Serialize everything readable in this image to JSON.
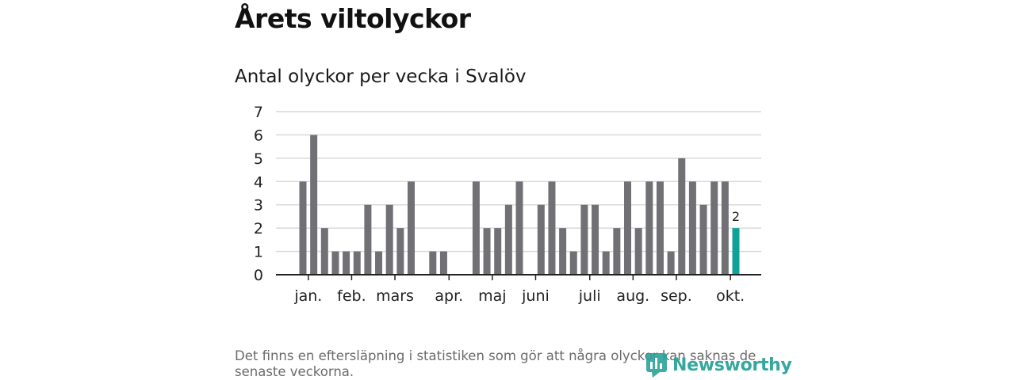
{
  "title": "Årets viltolyckor",
  "chart_data": {
    "type": "bar",
    "title": "Antal olyckor per vecka i Svalöv",
    "xlabel": "",
    "ylabel": "",
    "ylim": [
      0,
      7
    ],
    "y_ticks": [
      0,
      1,
      2,
      3,
      4,
      5,
      6,
      7
    ],
    "x_weeks": [
      1,
      2,
      3,
      4,
      5,
      6,
      7,
      8,
      9,
      10,
      11,
      12,
      13,
      14,
      15,
      16,
      17,
      18,
      19,
      20,
      21,
      22,
      23,
      24,
      25,
      26,
      27,
      28,
      29,
      30,
      31,
      32,
      33,
      34,
      35,
      36,
      37,
      38,
      39,
      40,
      41
    ],
    "values": [
      4,
      6,
      2,
      1,
      1,
      1,
      3,
      1,
      3,
      2,
      4,
      0,
      1,
      1,
      0,
      0,
      4,
      2,
      2,
      3,
      4,
      0,
      3,
      4,
      2,
      1,
      3,
      3,
      1,
      2,
      4,
      2,
      4,
      4,
      1,
      5,
      4,
      3,
      4,
      4,
      2
    ],
    "highlight_week": 41,
    "highlight_label": "2",
    "month_ticks": [
      {
        "label": "jan.",
        "week": 1.5
      },
      {
        "label": "feb.",
        "week": 5.5
      },
      {
        "label": "mars",
        "week": 9.5
      },
      {
        "label": "apr.",
        "week": 14.5
      },
      {
        "label": "maj",
        "week": 18.5
      },
      {
        "label": "juni",
        "week": 22.5
      },
      {
        "label": "juli",
        "week": 27.5
      },
      {
        "label": "aug.",
        "week": 31.5
      },
      {
        "label": "sep.",
        "week": 35.5
      },
      {
        "label": "okt.",
        "week": 40.5
      }
    ],
    "colors": {
      "bar": "#717075",
      "highlight": "#0fa19a",
      "grid": "#d9d9d9",
      "axis": "#222222"
    }
  },
  "note": "Det finns en eftersläpning i statistiken som gör att några olyckor kan saknas de senaste veckorna.",
  "logo": {
    "text": "Newsworthy",
    "icon": "newsworthy-chart-icon",
    "color": "#2aa39a"
  }
}
